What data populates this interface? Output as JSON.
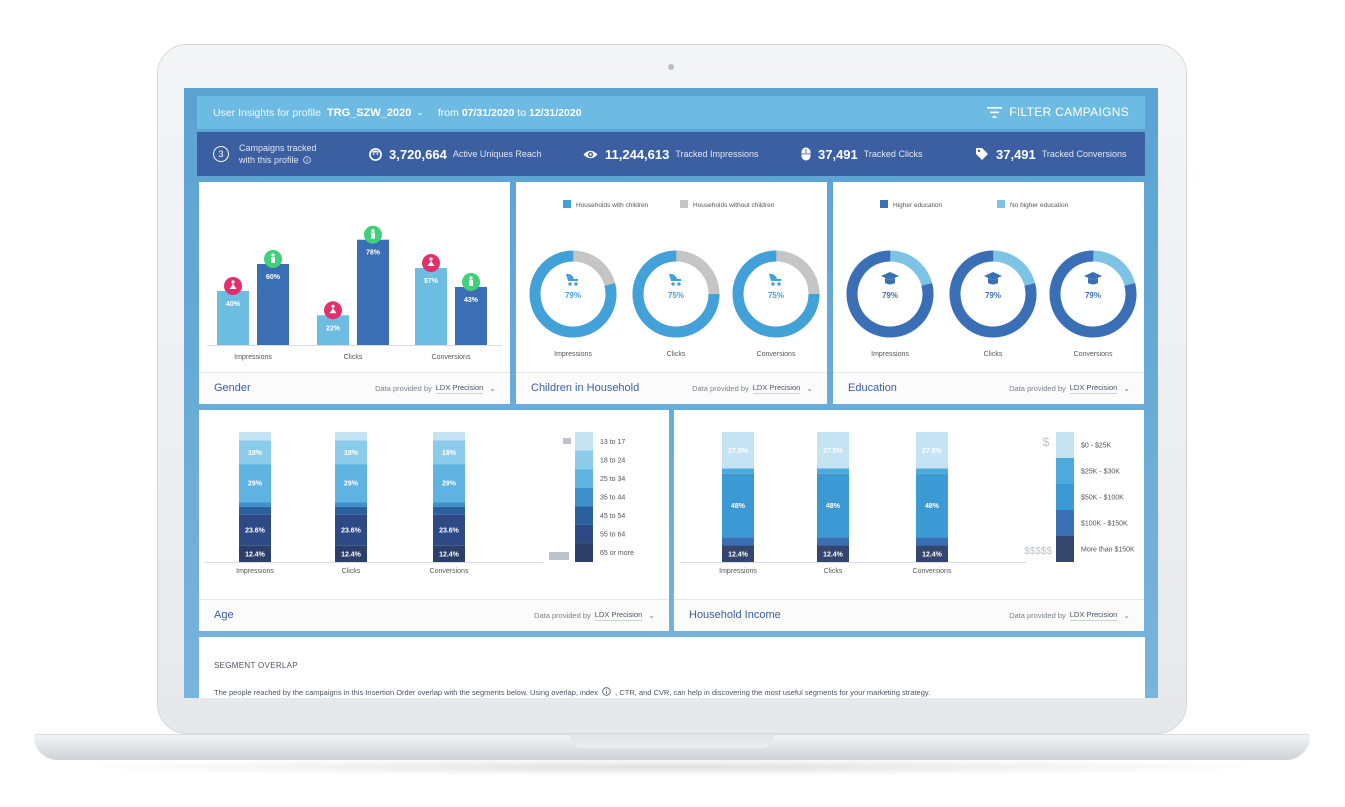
{
  "header": {
    "label": "User Insights for profile",
    "profile": "TRG_SZW_2020",
    "from_label": "from",
    "date_from": "07/31/2020",
    "to_label": "to",
    "date_to": "12/31/2020",
    "filter_label": "FILTER CAMPAIGNS"
  },
  "stats": {
    "campaigns_count": "3",
    "campaigns_line1": "Campaigns tracked",
    "campaigns_line2": "with this profile",
    "reach_value": "3,720,664",
    "reach_label": "Active Uniques Reach",
    "impressions_value": "11,244,613",
    "impressions_label": "Tracked Impressions",
    "clicks_value": "37,491",
    "clicks_label": "Tracked Clicks",
    "conversions_value": "37,491",
    "conversions_label": "Tracked Conversions"
  },
  "footer": {
    "provided_by": "Data provided by",
    "source": "LDX Precision"
  },
  "colors": {
    "accent": "#3b5fa0",
    "light_blue": "#6dbde3",
    "mid_blue": "#41a1d8",
    "gray": "#c5c5c5",
    "female": "#e2306c",
    "male": "#3fd079"
  },
  "cards": {
    "gender": {
      "title": "Gender"
    },
    "children": {
      "title": "Children in Household",
      "legend": [
        "Households with children",
        "Households without children"
      ]
    },
    "education": {
      "title": "Education",
      "legend": [
        "Higher education",
        "No higher education"
      ]
    },
    "age": {
      "title": "Age",
      "legend": [
        "13 to 17",
        "18 to 24",
        "25 to 34",
        "35 to 44",
        "45 to 54",
        "55 to 64",
        "65 or more"
      ]
    },
    "income": {
      "title": "Household Income",
      "legend": [
        "$0 - $25K",
        "$25K - $30K",
        "$50K - $100K",
        "$100K - $150K",
        "More than $150K"
      ],
      "icon_low": "$",
      "icon_high": "$$$$$"
    }
  },
  "segment": {
    "title": "SEGMENT OVERLAP",
    "text": "The people reached by the campaigns in this Insertion Order overlap with the segments below.   Using overlap, index",
    "text2": ", CTR, and CVR, can help in discovering the most useful segments for your marketing strategy."
  },
  "chart_data": [
    {
      "type": "bar",
      "categories": [
        "Impressions",
        "Clicks",
        "Conversions"
      ],
      "series": [
        {
          "name": "",
          "values": [
            40,
            22,
            57
          ]
        },
        {
          "name": "",
          "values": [
            60,
            78,
            43
          ]
        }
      ],
      "labels": [
        [
          "40%",
          "22%",
          "57%"
        ],
        [
          "60%",
          "78%",
          "43%"
        ]
      ],
      "ylim": [
        0,
        100
      ]
    },
    {
      "type": "pie",
      "categories": [
        "Impressions",
        "Clicks",
        "Conversions"
      ],
      "series": [
        {
          "name": "Households with children",
          "values": [
            79,
            75,
            75
          ]
        },
        {
          "name": "Households without children",
          "values": [
            21,
            25,
            25
          ]
        }
      ],
      "labels": [
        "79%",
        "75%",
        "75%"
      ]
    },
    {
      "type": "pie",
      "categories": [
        "Impressions",
        "Clicks",
        "Conversions"
      ],
      "series": [
        {
          "name": "Higher education",
          "values": [
            79,
            79,
            79
          ]
        },
        {
          "name": "No higher education",
          "values": [
            21,
            21,
            21
          ]
        }
      ],
      "labels": [
        "79%",
        "79%",
        "79%"
      ]
    },
    {
      "type": "bar",
      "stacked": true,
      "categories": [
        "Impressions",
        "Clicks",
        "Conversions"
      ],
      "segments": [
        {
          "name": "13 to 17",
          "value": 6.5
        },
        {
          "name": "18 to 24",
          "value": 18,
          "label": "18%"
        },
        {
          "name": "25 to 34",
          "value": 29,
          "label": "29%"
        },
        {
          "name": "35 to 44",
          "value": 3.5
        },
        {
          "name": "45 to 54",
          "value": 6
        },
        {
          "name": "55 to 64",
          "value": 23.6,
          "label": "23.6%"
        },
        {
          "name": "65 or more",
          "value": 12.4,
          "label": "12.4%"
        }
      ]
    },
    {
      "type": "bar",
      "stacked": true,
      "categories": [
        "Impressions",
        "Clicks",
        "Conversions"
      ],
      "segments": [
        {
          "name": "$0 - $25K",
          "value": 27.5,
          "label": "27.5%"
        },
        {
          "name": "$25K - $30K",
          "value": 4
        },
        {
          "name": "$50K - $100K",
          "value": 48,
          "label": "48%"
        },
        {
          "name": "$100K - $150K",
          "value": 6
        },
        {
          "name": "More than $150K",
          "value": 12.4,
          "label": "12.4%"
        }
      ]
    }
  ]
}
